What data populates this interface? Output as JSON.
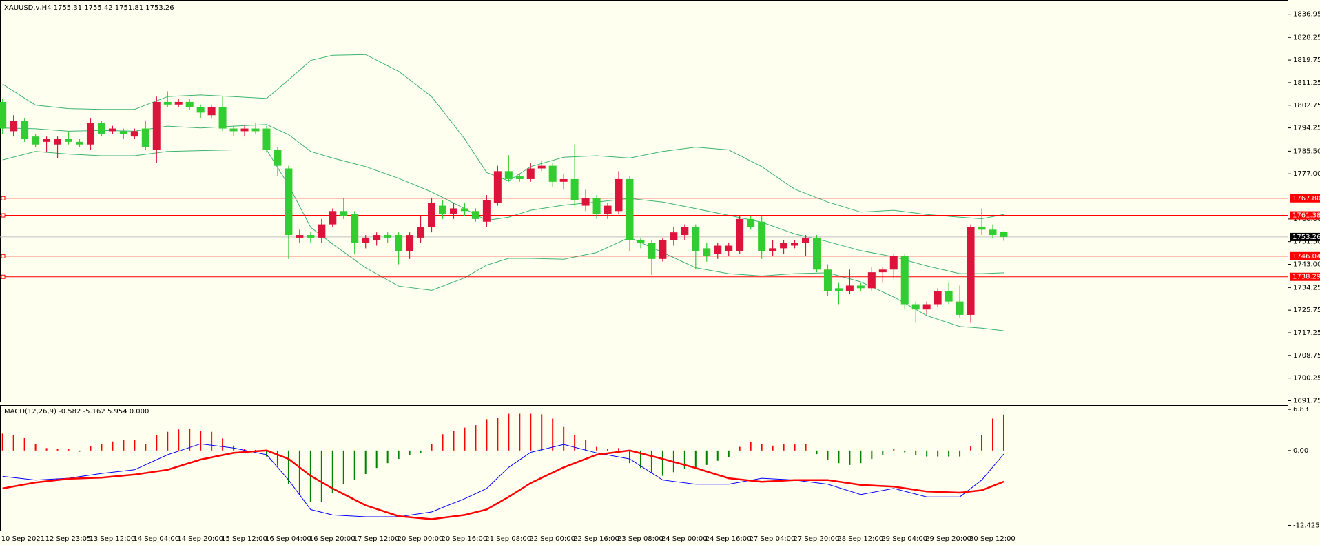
{
  "chart_data": [
    {
      "type": "candlestick",
      "title": "XAUUSD.v,H4  1755.31 1755.42 1751.81 1753.26",
      "categories": [
        "10 Sep 2021",
        null,
        null,
        null,
        "12 Sep 23:05",
        null,
        null,
        null,
        "13 Sep 12:00",
        null,
        null,
        null,
        "14 Sep 04:00",
        null,
        null,
        null,
        "14 Sep 20:00",
        null,
        null,
        null,
        "15 Sep 12:00",
        null,
        null,
        null,
        "16 Sep 04:00",
        null,
        null,
        null,
        "16 Sep 20:00",
        null,
        null,
        null,
        "17 Sep 12:00",
        null,
        null,
        null,
        "20 Sep 00:00",
        null,
        null,
        null,
        "20 Sep 16:00",
        null,
        null,
        null,
        "21 Sep 08:00",
        null,
        null,
        null,
        "22 Sep 00:00",
        null,
        null,
        null,
        "22 Sep 16:00",
        null,
        null,
        null,
        "23 Sep 08:00",
        null,
        null,
        null,
        "24 Sep 00:00",
        null,
        null,
        null,
        "24 Sep 16:00",
        null,
        null,
        null,
        "27 Sep 04:00",
        null,
        null,
        null,
        "27 Sep 20:00",
        null,
        null,
        null,
        "28 Sep 12:00",
        null,
        null,
        null,
        "29 Sep 04:00",
        null,
        null,
        null,
        "29 Sep 20:00",
        null,
        null,
        null,
        "30 Sep 12:00",
        null,
        null,
        null
      ],
      "open": [
        1804,
        1793,
        1797,
        1791,
        1789,
        1788,
        1790,
        1789,
        1788,
        1796,
        1793,
        1793,
        1791,
        1794,
        1786,
        1804,
        1803,
        1804,
        1802,
        1799,
        1802,
        1794,
        1793,
        1794,
        1794,
        1786,
        1779,
        1753,
        1754,
        1753,
        1758,
        1763,
        1762,
        1751,
        1752,
        1754,
        1754,
        1748,
        1753,
        1757,
        1765,
        1762,
        1764,
        1763,
        1759,
        1766,
        1778,
        1776,
        1775,
        1779,
        1780,
        1774,
        1775,
        1765,
        1768,
        1762,
        1763,
        1775,
        1752,
        1751,
        1745,
        1752,
        1754,
        1757,
        1749,
        1747,
        1748,
        1748,
        1760,
        1759,
        1748,
        1749,
        1750,
        1751,
        1753,
        1741,
        1734,
        1733,
        1735,
        1734,
        1740,
        1741,
        1746,
        1728,
        1726,
        1728,
        1733,
        1729,
        1724,
        1757,
        1756,
        1755.31
      ],
      "high": [
        1805,
        1799,
        1798,
        1792,
        1791,
        1791,
        1793,
        1790,
        1798,
        1797,
        1795,
        1794,
        1794,
        1797,
        1806,
        1808,
        1805,
        1805,
        1803,
        1803,
        1806,
        1795,
        1795,
        1796,
        1795,
        1787,
        1780,
        1756,
        1755,
        1760,
        1764,
        1768,
        1763,
        1754,
        1755,
        1755,
        1755,
        1755,
        1761,
        1768,
        1767,
        1766,
        1766,
        1764,
        1769,
        1780,
        1784,
        1777,
        1781,
        1782,
        1781,
        1777,
        1788,
        1771,
        1769,
        1766,
        1778,
        1776,
        1753,
        1752,
        1753,
        1757,
        1758,
        1758,
        1751,
        1751,
        1751,
        1761,
        1761,
        1761,
        1752,
        1752,
        1752,
        1754,
        1754,
        1743,
        1736,
        1741,
        1736,
        1742,
        1742,
        1747,
        1747,
        1729,
        1729,
        1734,
        1736,
        1735,
        1758,
        1764,
        1758,
        1755.42
      ],
      "low": [
        1792,
        1791,
        1789,
        1787,
        1785,
        1783,
        1788,
        1787,
        1786,
        1791,
        1792,
        1790,
        1790,
        1786,
        1781,
        1802,
        1802,
        1801,
        1798,
        1798,
        1793,
        1791,
        1791,
        1792,
        1785,
        1776,
        1745,
        1751,
        1751,
        1751,
        1757,
        1760,
        1747,
        1749,
        1750,
        1751,
        1743,
        1745,
        1751,
        1755,
        1760,
        1760,
        1761,
        1759,
        1757,
        1765,
        1774,
        1774,
        1774,
        1778,
        1772,
        1771,
        1765,
        1763,
        1760,
        1760,
        1762,
        1748,
        1749,
        1739,
        1744,
        1750,
        1752,
        1741,
        1744,
        1745,
        1746,
        1747,
        1756,
        1745,
        1746,
        1747,
        1749,
        1746,
        1740,
        1731,
        1728,
        1732,
        1733,
        1733,
        1736,
        1738,
        1726,
        1721,
        1724,
        1727,
        1728,
        1723,
        1721,
        1754,
        1753,
        1751.81
      ],
      "close": [
        1794,
        1797,
        1790,
        1788,
        1790,
        1790,
        1789,
        1788,
        1796,
        1792,
        1794,
        1792,
        1793,
        1787,
        1804,
        1803,
        1804,
        1802,
        1800,
        1802,
        1794,
        1793,
        1794,
        1793,
        1786,
        1780,
        1754,
        1754,
        1753,
        1758,
        1763,
        1761,
        1751,
        1753,
        1754,
        1753,
        1748,
        1754,
        1757,
        1766,
        1762,
        1764,
        1763,
        1760,
        1767,
        1778,
        1775,
        1775,
        1779,
        1780,
        1774,
        1775,
        1767,
        1768,
        1762,
        1765,
        1775,
        1752,
        1751,
        1745,
        1752,
        1755,
        1757,
        1748,
        1746,
        1750,
        1750,
        1760,
        1757,
        1748,
        1749,
        1751,
        1751,
        1753,
        1741,
        1733,
        1733,
        1735,
        1734,
        1740,
        1741,
        1746,
        1728,
        1726,
        1728,
        1733,
        1729,
        1724,
        1757,
        1756,
        1754,
        1753.26
      ],
      "up_color": "#dc143c",
      "down_color": "#32cd32",
      "ylim": [
        1691.1,
        1842.3
      ],
      "yticks": [
        {
          "value": 1836.95,
          "label": "1836.95"
        },
        {
          "value": 1828.25,
          "label": "1828.25"
        },
        {
          "value": 1819.75,
          "label": "1819.75"
        },
        {
          "value": 1811.25,
          "label": "1811.25"
        },
        {
          "value": 1802.75,
          "label": "1802.75"
        },
        {
          "value": 1794.25,
          "label": "1794.25"
        },
        {
          "value": 1785.5,
          "label": "1785.50"
        },
        {
          "value": 1777,
          "label": "1777.00"
        },
        {
          "value": 1760,
          "label": "1760.00"
        },
        {
          "value": 1751.5,
          "label": "1751.50"
        },
        {
          "value": 1743,
          "label": "1743.00"
        },
        {
          "value": 1734.25,
          "label": "1734.25"
        },
        {
          "value": 1725.75,
          "label": "1725.75"
        },
        {
          "value": 1717.25,
          "label": "1717.25"
        },
        {
          "value": 1708.75,
          "label": "1708.75"
        },
        {
          "value": 1700.25,
          "label": "1700.25"
        },
        {
          "value": 1691.75,
          "label": "1691.75"
        }
      ],
      "bands": {
        "color": "#3cb371",
        "x": [
          0,
          3,
          6,
          9,
          12,
          15,
          18,
          21,
          24,
          26,
          28,
          30,
          33,
          36,
          39,
          42,
          44,
          46,
          48,
          51,
          54,
          57,
          60,
          63,
          66,
          69,
          72,
          75,
          78,
          81,
          84,
          87,
          89,
          91
        ],
        "upper": [
          1810.7,
          1802.8,
          1801.5,
          1801.2,
          1801.2,
          1806.0,
          1806.6,
          1806.0,
          1805.3,
          1812.3,
          1819.6,
          1821.5,
          1821.8,
          1815.5,
          1806.0,
          1790.1,
          1777.5,
          1774.3,
          1779.7,
          1783.2,
          1783.8,
          1782.9,
          1785.4,
          1787.0,
          1786.0,
          1779.7,
          1771.2,
          1766.4,
          1762.6,
          1763.3,
          1761.7,
          1760.7,
          1760.1,
          1761.7
        ],
        "middle": [
          1794.2,
          1793.9,
          1793.0,
          1793.3,
          1793.0,
          1794.9,
          1794.2,
          1794.9,
          1795.5,
          1791.7,
          1785.4,
          1782.9,
          1779.7,
          1775.3,
          1770.2,
          1763.9,
          1759.5,
          1760.7,
          1763.3,
          1765.2,
          1766.4,
          1767.7,
          1766.4,
          1763.9,
          1761.4,
          1758.8,
          1754.4,
          1751.5,
          1748.1,
          1745.8,
          1742.4,
          1739.5,
          1739.5,
          1739.8
        ],
        "lower": [
          1782.2,
          1785.4,
          1784.4,
          1783.8,
          1783.8,
          1785.4,
          1785.7,
          1786.0,
          1786.0,
          1772.7,
          1756.9,
          1750.6,
          1741.7,
          1734.8,
          1733.2,
          1737.9,
          1742.7,
          1745.2,
          1745.2,
          1744.9,
          1747.4,
          1753.1,
          1747.4,
          1741.7,
          1739.5,
          1738.6,
          1739.5,
          1739.8,
          1736.4,
          1730.7,
          1723.7,
          1719.6,
          1719.0,
          1718.0
        ]
      },
      "levels": [
        {
          "value": 1767.8,
          "label": "1767.80"
        },
        {
          "value": 1761.38,
          "label": "1761.38"
        },
        {
          "value": 1746.04,
          "label": "1746.04"
        },
        {
          "value": 1738.29,
          "label": "1738.29"
        }
      ],
      "level_color": "#ff0000",
      "price_line": {
        "value": 1753.26,
        "label": "1753.26"
      },
      "price_line_color": "#c0c0c0"
    },
    {
      "type": "macd",
      "title": "MACD(12,26,9) -0.582 -5.162 5.954 0.000",
      "values": [
        2.8,
        2.5,
        2.1,
        1.1,
        0.4,
        0.3,
        0.2,
        -0.2,
        0.7,
        1.1,
        1.5,
        1.7,
        1.7,
        1.1,
        2.5,
        3.1,
        3.5,
        3.6,
        3.3,
        3.1,
        2.0,
        0.8,
        0.3,
        0.1,
        -1.0,
        -2.5,
        -5.6,
        -7.4,
        -8.5,
        -8.5,
        -7.1,
        -5.6,
        -4.9,
        -3.9,
        -2.9,
        -2.1,
        -1.4,
        -0.8,
        -0.4,
        1.1,
        2.7,
        3.3,
        3.8,
        4.2,
        5.2,
        5.4,
        6.1,
        6.1,
        6.1,
        6.0,
        5.3,
        3.9,
        2.5,
        1.7,
        0.6,
        0.3,
        0.4,
        -2.1,
        -2.9,
        -3.8,
        -4.2,
        -3.6,
        -3.1,
        -2.8,
        -2.4,
        -1.7,
        -1.1,
        0.6,
        1.4,
        1.1,
        0.8,
        1.0,
        1.0,
        1.1,
        -0.6,
        -1.5,
        -2.1,
        -2.4,
        -2.1,
        -1.4,
        -0.7,
        0.3,
        -0.3,
        -0.7,
        -1.0,
        -1.0,
        -1.0,
        -1.0,
        0.7,
        2.5,
        5.3,
        5.954
      ],
      "up_color": "#ff0000",
      "down_color": "#008000",
      "ylim": [
        -13.4,
        7.53
      ],
      "yticks": [
        6.83,
        {
          "value": 0,
          "label": "0.00"
        },
        -12.425
      ],
      "lines": {
        "x": [
          0,
          3,
          6,
          9,
          12,
          15,
          18,
          21,
          24,
          26,
          28,
          30,
          33,
          36,
          39,
          42,
          44,
          46,
          48,
          51,
          54,
          57,
          60,
          63,
          66,
          69,
          72,
          75,
          78,
          81,
          84,
          87,
          89,
          91
        ],
        "series": [
          {
            "color": "#0000ff",
            "width": 1,
            "values": [
              -4.3,
              -4.9,
              -4.6,
              -3.8,
              -3.2,
              -0.7,
              1.1,
              0.4,
              -0.7,
              -4.9,
              -9.8,
              -10.7,
              -11.0,
              -11.0,
              -10.2,
              -8.0,
              -6.3,
              -2.8,
              -0.3,
              1.0,
              -0.4,
              -1.4,
              -4.9,
              -5.6,
              -5.6,
              -4.6,
              -4.9,
              -5.6,
              -7.3,
              -6.3,
              -7.7,
              -7.7,
              -4.9,
              -0.582
            ]
          },
          {
            "color": "#ff0000",
            "width": 2.5,
            "values": [
              -6.3,
              -5.3,
              -4.7,
              -4.5,
              -4.0,
              -3.2,
              -1.5,
              -0.4,
              0.0,
              -1.4,
              -4.2,
              -6.3,
              -9.1,
              -10.9,
              -11.4,
              -10.7,
              -9.8,
              -7.7,
              -5.4,
              -2.8,
              -0.7,
              0.0,
              -1.4,
              -2.9,
              -4.6,
              -5.2,
              -4.9,
              -4.9,
              -5.7,
              -6.0,
              -6.8,
              -7.0,
              -6.6,
              -5.162
            ]
          }
        ]
      }
    }
  ]
}
